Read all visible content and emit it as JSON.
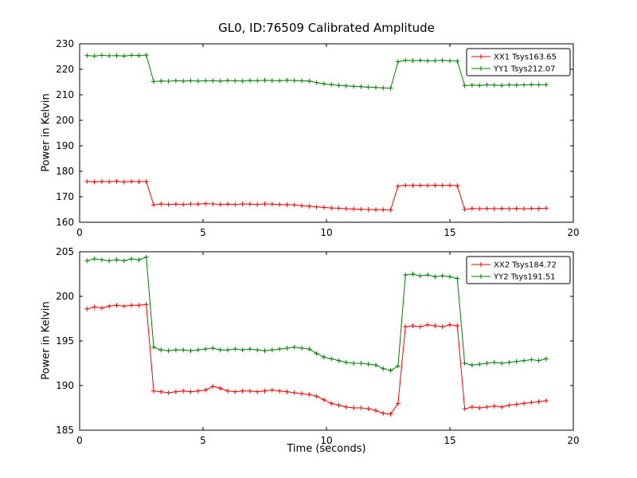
{
  "title": "GL0, ID:76509 Calibrated Amplitude",
  "chart_data": [
    {
      "type": "line",
      "title": "GL0, ID:76509 Calibrated Amplitude",
      "xlabel": "",
      "ylabel": "Power in Kelvin",
      "xlim": [
        0,
        20
      ],
      "ylim": [
        160,
        230
      ],
      "xticks": [
        0,
        5,
        10,
        15,
        20
      ],
      "yticks": [
        160,
        170,
        180,
        190,
        200,
        210,
        220,
        230
      ],
      "grid": false,
      "legend_position": "upper right",
      "x": [
        0.3,
        0.6,
        0.9,
        1.2,
        1.5,
        1.8,
        2.1,
        2.4,
        2.7,
        3.0,
        3.3,
        3.6,
        3.9,
        4.2,
        4.5,
        4.8,
        5.1,
        5.4,
        5.7,
        6.0,
        6.3,
        6.6,
        6.9,
        7.2,
        7.5,
        7.8,
        8.1,
        8.4,
        8.7,
        9.0,
        9.3,
        9.6,
        9.9,
        10.2,
        10.5,
        10.8,
        11.1,
        11.4,
        11.7,
        12.0,
        12.3,
        12.6,
        12.9,
        13.2,
        13.5,
        13.8,
        14.1,
        14.4,
        14.7,
        15.0,
        15.3,
        15.6,
        15.9,
        16.2,
        16.5,
        16.8,
        17.1,
        17.4,
        17.7,
        18.0,
        18.3,
        18.6,
        18.9
      ],
      "series": [
        {
          "name": "XX1 Tsys163.65",
          "color": "#ff0000",
          "marker": "plus",
          "values": [
            176.0,
            175.8,
            176.0,
            175.9,
            176.1,
            175.8,
            176.0,
            175.9,
            176.0,
            166.8,
            167.2,
            167.0,
            167.1,
            167.0,
            167.2,
            167.1,
            167.3,
            167.2,
            167.0,
            167.1,
            167.0,
            167.2,
            167.1,
            167.0,
            167.2,
            167.1,
            167.0,
            166.9,
            166.8,
            166.5,
            166.3,
            166.0,
            165.8,
            165.6,
            165.5,
            165.3,
            165.2,
            165.1,
            165.0,
            164.9,
            164.9,
            164.8,
            174.2,
            174.5,
            174.4,
            174.5,
            174.4,
            174.5,
            174.4,
            174.5,
            174.3,
            165.0,
            165.4,
            165.3,
            165.4,
            165.3,
            165.4,
            165.3,
            165.4,
            165.3,
            165.4,
            165.4,
            165.5
          ]
        },
        {
          "name": "YY1 Tsys212.07",
          "color": "#008000",
          "marker": "plus",
          "values": [
            225.4,
            225.2,
            225.5,
            225.3,
            225.4,
            225.2,
            225.5,
            225.4,
            225.6,
            215.2,
            215.4,
            215.3,
            215.5,
            215.4,
            215.5,
            215.4,
            215.5,
            215.5,
            215.4,
            215.6,
            215.5,
            215.4,
            215.6,
            215.5,
            215.7,
            215.6,
            215.5,
            215.7,
            215.6,
            215.5,
            215.4,
            214.8,
            214.3,
            214.0,
            213.7,
            213.5,
            213.3,
            213.2,
            213.0,
            212.9,
            212.7,
            212.6,
            223.0,
            223.5,
            223.4,
            223.5,
            223.3,
            223.4,
            223.5,
            223.3,
            223.2,
            213.6,
            213.8,
            213.7,
            213.9,
            213.8,
            213.7,
            213.9,
            213.8,
            213.9,
            214.0,
            213.9,
            214.0
          ]
        }
      ]
    },
    {
      "type": "line",
      "title": "",
      "xlabel": "Time (seconds)",
      "ylabel": "Power in Kelvin",
      "xlim": [
        0,
        20
      ],
      "ylim": [
        185,
        205
      ],
      "xticks": [
        0,
        5,
        10,
        15,
        20
      ],
      "yticks": [
        185,
        190,
        195,
        200,
        205
      ],
      "grid": false,
      "legend_position": "upper right",
      "x": [
        0.3,
        0.6,
        0.9,
        1.2,
        1.5,
        1.8,
        2.1,
        2.4,
        2.7,
        3.0,
        3.3,
        3.6,
        3.9,
        4.2,
        4.5,
        4.8,
        5.1,
        5.4,
        5.7,
        6.0,
        6.3,
        6.6,
        6.9,
        7.2,
        7.5,
        7.8,
        8.1,
        8.4,
        8.7,
        9.0,
        9.3,
        9.6,
        9.9,
        10.2,
        10.5,
        10.8,
        11.1,
        11.4,
        11.7,
        12.0,
        12.3,
        12.6,
        12.9,
        13.2,
        13.5,
        13.8,
        14.1,
        14.4,
        14.7,
        15.0,
        15.3,
        15.6,
        15.9,
        16.2,
        16.5,
        16.8,
        17.1,
        17.4,
        17.7,
        18.0,
        18.3,
        18.6,
        18.9
      ],
      "series": [
        {
          "name": "XX2 Tsys184.72",
          "color": "#ff0000",
          "marker": "plus",
          "values": [
            198.6,
            198.8,
            198.7,
            198.9,
            199.0,
            198.9,
            199.0,
            199.0,
            199.1,
            189.4,
            189.3,
            189.2,
            189.3,
            189.4,
            189.3,
            189.4,
            189.5,
            189.9,
            189.7,
            189.4,
            189.3,
            189.4,
            189.4,
            189.3,
            189.4,
            189.5,
            189.4,
            189.3,
            189.2,
            189.1,
            189.0,
            188.8,
            188.4,
            188.0,
            187.8,
            187.6,
            187.5,
            187.5,
            187.4,
            187.2,
            186.9,
            186.8,
            188.0,
            196.6,
            196.7,
            196.6,
            196.8,
            196.7,
            196.6,
            196.8,
            196.7,
            187.4,
            187.6,
            187.5,
            187.6,
            187.7,
            187.6,
            187.8,
            187.9,
            188.0,
            188.1,
            188.2,
            188.3
          ]
        },
        {
          "name": "YY2 Tsys191.51",
          "color": "#008000",
          "marker": "plus",
          "values": [
            204.0,
            204.2,
            204.1,
            204.0,
            204.1,
            204.0,
            204.2,
            204.1,
            204.4,
            194.3,
            194.0,
            193.9,
            194.0,
            194.0,
            193.9,
            194.0,
            194.1,
            194.2,
            194.0,
            194.0,
            194.1,
            194.0,
            194.1,
            194.0,
            193.9,
            194.0,
            194.1,
            194.2,
            194.3,
            194.2,
            194.1,
            193.6,
            193.2,
            193.0,
            192.8,
            192.6,
            192.5,
            192.5,
            192.4,
            192.3,
            191.9,
            191.7,
            192.2,
            202.4,
            202.5,
            202.3,
            202.4,
            202.2,
            202.3,
            202.2,
            202.0,
            192.5,
            192.3,
            192.4,
            192.5,
            192.6,
            192.5,
            192.6,
            192.7,
            192.8,
            192.9,
            192.8,
            193.0
          ]
        }
      ]
    }
  ]
}
